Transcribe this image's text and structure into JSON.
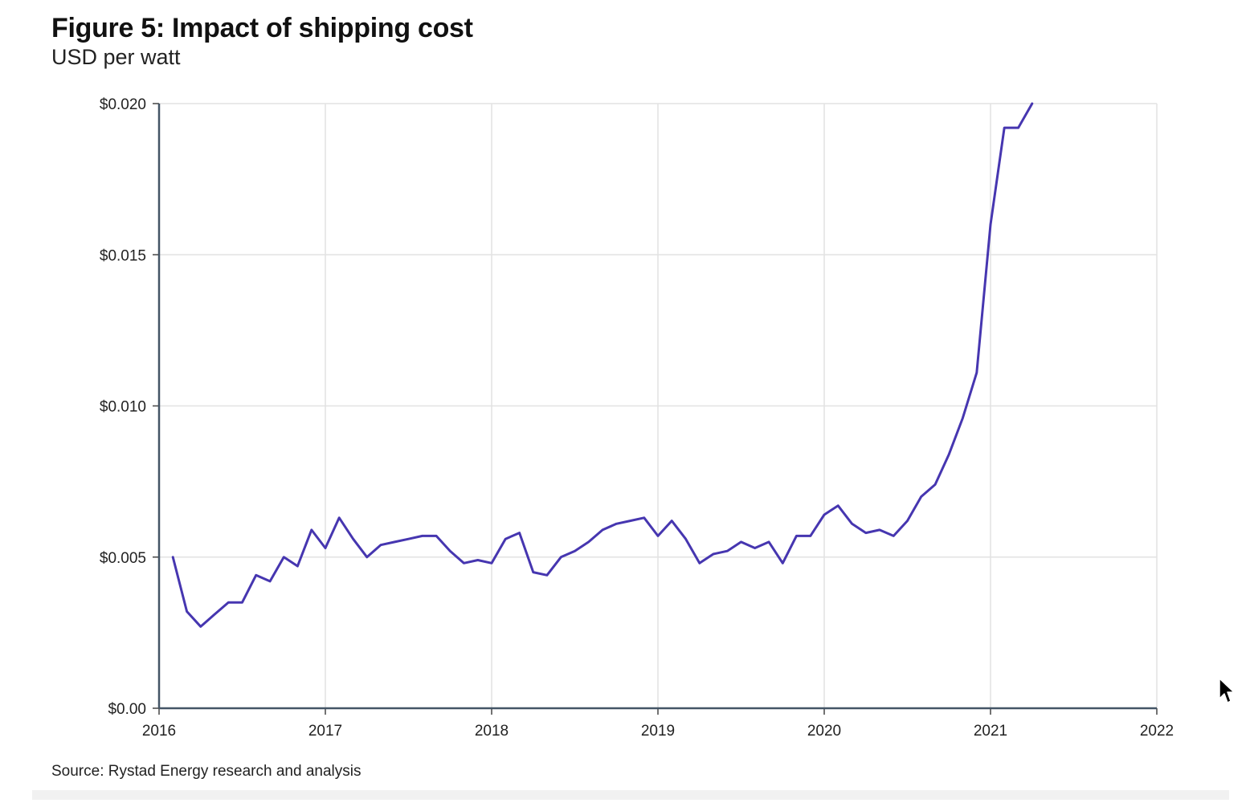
{
  "chart_data": {
    "type": "line",
    "title": "Figure 5: Impact of shipping cost",
    "subtitle": "USD per watt",
    "source": "Source: Rystad Energy research and analysis",
    "x_tick_labels": [
      "2016",
      "2017",
      "2018",
      "2019",
      "2020",
      "2021",
      "2022"
    ],
    "y_tick_labels": [
      "$0.00",
      "$0.005",
      "$0.010",
      "$0.015",
      "$0.020"
    ],
    "xlim": [
      2016,
      2022
    ],
    "ylim": [
      0,
      0.02
    ],
    "x_ticks": [
      2016,
      2017,
      2018,
      2019,
      2020,
      2021,
      2022
    ],
    "y_ticks": [
      0,
      0.005,
      0.01,
      0.015,
      0.02
    ],
    "grid": true,
    "line_color": "#4636b0",
    "series": [
      {
        "x": [
          2016.083,
          2016.167,
          2016.25,
          2016.333,
          2016.417,
          2016.5,
          2016.583,
          2016.667,
          2016.75,
          2016.833,
          2016.917,
          2017.0,
          2017.083,
          2017.167,
          2017.25,
          2017.333,
          2017.417,
          2017.5,
          2017.583,
          2017.667,
          2017.75,
          2017.833,
          2017.917,
          2018.0,
          2018.083,
          2018.167,
          2018.25,
          2018.333,
          2018.417,
          2018.5,
          2018.583,
          2018.667,
          2018.75,
          2018.833,
          2018.917,
          2019.0,
          2019.083,
          2019.167,
          2019.25,
          2019.333,
          2019.417,
          2019.5,
          2019.583,
          2019.667,
          2019.75,
          2019.833,
          2019.917,
          2020.0,
          2020.083,
          2020.167,
          2020.25,
          2020.333,
          2020.417,
          2020.5,
          2020.583,
          2020.667,
          2020.75,
          2020.833,
          2020.917,
          2021.0,
          2021.083,
          2021.167,
          2021.25
        ],
        "y": [
          0.005,
          0.0032,
          0.0027,
          0.0031,
          0.0035,
          0.0035,
          0.0044,
          0.0042,
          0.005,
          0.0047,
          0.0059,
          0.0053,
          0.0063,
          0.0056,
          0.005,
          0.0054,
          0.0055,
          0.0056,
          0.0057,
          0.0057,
          0.0052,
          0.0048,
          0.0049,
          0.0048,
          0.0056,
          0.0058,
          0.0045,
          0.0044,
          0.005,
          0.0052,
          0.0055,
          0.0059,
          0.0061,
          0.0062,
          0.0063,
          0.0057,
          0.0062,
          0.0056,
          0.0048,
          0.0051,
          0.0052,
          0.0055,
          0.0053,
          0.0055,
          0.0048,
          0.0057,
          0.0057,
          0.0064,
          0.0067,
          0.0061,
          0.0058,
          0.0059,
          0.0057,
          0.0062,
          0.007,
          0.0074,
          0.0084,
          0.0096,
          0.0111,
          0.016,
          0.0192,
          0.0192,
          0.02
        ]
      }
    ]
  }
}
